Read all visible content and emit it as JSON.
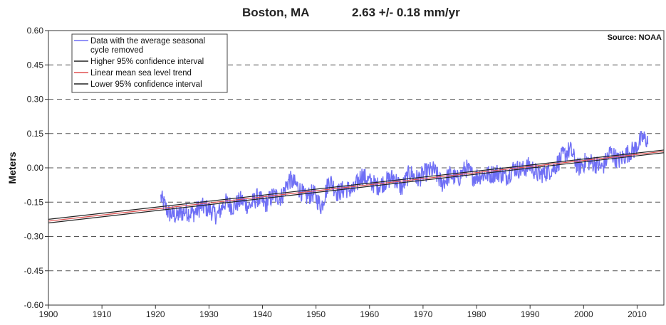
{
  "header": {
    "location": "Boston, MA",
    "rate": "2.63 +/- 0.18 mm/yr"
  },
  "source_label": "Source: NOAA",
  "chart_data": {
    "type": "line",
    "ylabel": "Meters",
    "xlim": [
      1900,
      2015
    ],
    "ylim": [
      -0.6,
      0.6
    ],
    "xticks": [
      1900,
      1910,
      1920,
      1930,
      1940,
      1950,
      1960,
      1970,
      1980,
      1990,
      2000,
      2010
    ],
    "yticks": [
      0.6,
      0.45,
      0.3,
      0.15,
      0.0,
      -0.15,
      -0.3,
      -0.45,
      -0.6
    ],
    "ytick_labels": [
      "0.60",
      "0.45",
      "0.30",
      "0.15",
      "0.00",
      "-0.15",
      "-0.30",
      "-0.45",
      "-0.60"
    ],
    "grid": "horizontal-dashed",
    "legend_position": "top-left",
    "legend": [
      {
        "label": "Data with the average seasonal",
        "label2": "cycle removed",
        "color": "#6f6ff5"
      },
      {
        "label": "Higher 95% confidence interval",
        "color": "#222222"
      },
      {
        "label": "Linear mean sea level trend",
        "color": "#e05050"
      },
      {
        "label": "Lower 95% confidence interval",
        "color": "#222222"
      }
    ],
    "series": [
      {
        "name": "Data with the average seasonal cycle removed",
        "color": "#6f6ff5",
        "x_start": 1921.0,
        "x_end": 2012.0,
        "x": [
          1921.0,
          1922.5,
          1924.0,
          1925.5,
          1927.0,
          1928.5,
          1930.0,
          1931.5,
          1933.0,
          1934.5,
          1936.0,
          1937.5,
          1939.0,
          1940.5,
          1942.0,
          1943.5,
          1945.0,
          1946.5,
          1948.0,
          1949.5,
          1951.0,
          1952.5,
          1954.0,
          1955.5,
          1957.0,
          1958.5,
          1960.0,
          1961.5,
          1963.0,
          1964.5,
          1966.0,
          1967.5,
          1969.0,
          1970.5,
          1972.0,
          1973.5,
          1975.0,
          1976.5,
          1978.0,
          1979.5,
          1981.0,
          1982.5,
          1984.0,
          1985.5,
          1987.0,
          1988.5,
          1990.0,
          1991.5,
          1993.0,
          1994.5,
          1996.0,
          1997.5,
          1999.0,
          2000.5,
          2002.0,
          2003.5,
          2005.0,
          2006.5,
          2008.0,
          2009.5,
          2011.0,
          2012.0
        ],
        "y": [
          -0.13,
          -0.2,
          -0.21,
          -0.19,
          -0.2,
          -0.17,
          -0.18,
          -0.21,
          -0.15,
          -0.17,
          -0.14,
          -0.17,
          -0.13,
          -0.16,
          -0.12,
          -0.13,
          -0.05,
          -0.08,
          -0.13,
          -0.11,
          -0.17,
          -0.05,
          -0.11,
          -0.09,
          -0.1,
          -0.03,
          -0.06,
          -0.08,
          -0.06,
          -0.04,
          -0.09,
          -0.02,
          -0.05,
          -0.02,
          -0.01,
          -0.07,
          -0.03,
          -0.05,
          0.0,
          -0.04,
          -0.03,
          -0.03,
          -0.02,
          -0.04,
          0.0,
          -0.01,
          0.01,
          -0.03,
          -0.02,
          0.0,
          0.05,
          0.08,
          0.0,
          0.03,
          0.02,
          0.0,
          0.07,
          0.03,
          0.06,
          0.08,
          0.13,
          0.12
        ]
      },
      {
        "name": "Higher 95% confidence interval",
        "color": "#222222",
        "x": [
          1900,
          2015
        ],
        "y": [
          -0.225,
          0.078
        ]
      },
      {
        "name": "Linear mean sea level trend",
        "color": "#e05050",
        "x": [
          1900,
          2015
        ],
        "y": [
          -0.233,
          0.072
        ]
      },
      {
        "name": "Lower 95% confidence interval",
        "color": "#222222",
        "x": [
          1900,
          2015
        ],
        "y": [
          -0.241,
          0.066
        ]
      }
    ]
  }
}
